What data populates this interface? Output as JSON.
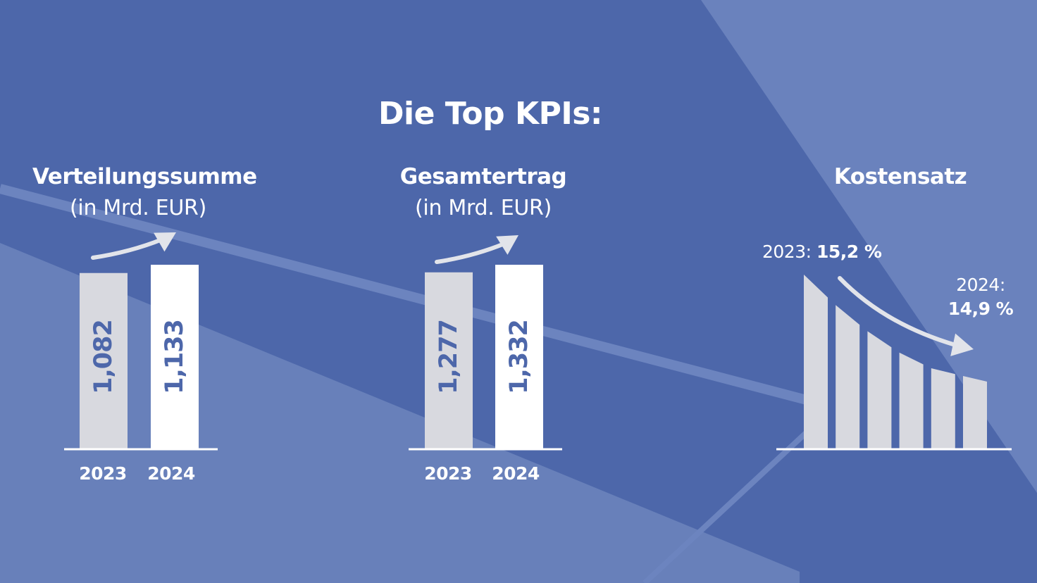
{
  "title": "Die Top KPIs:",
  "colors": {
    "background": "#4d67aa",
    "background_light": "#6880ba",
    "bar_2023": "#d8d9df",
    "bar_2024": "#ffffff",
    "accent_text": "#4d67aa",
    "arrow": "#e2e4ea"
  },
  "chart_data": [
    {
      "type": "bar",
      "title": "Verteilungssumme",
      "subtitle": "(in Mrd. EUR)",
      "categories": [
        "2023",
        "2024"
      ],
      "values": [
        1.082,
        1.133
      ],
      "value_labels": [
        "1,082",
        "1,133"
      ],
      "ylim": [
        0,
        1.133
      ],
      "trend_arrow": "up",
      "grid": false,
      "legend": "none"
    },
    {
      "type": "bar",
      "title": "Gesamtertrag",
      "subtitle": "(in Mrd. EUR)",
      "categories": [
        "2023",
        "2024"
      ],
      "values": [
        1.277,
        1.332
      ],
      "value_labels": [
        "1,277",
        "1,332"
      ],
      "ylim": [
        0,
        1.332
      ],
      "trend_arrow": "up",
      "grid": false,
      "legend": "none"
    },
    {
      "type": "bar",
      "title": "Kostensatz",
      "start": {
        "year_label": "2023:",
        "value_label": "15,2 %",
        "value": 15.2
      },
      "end": {
        "year_label": "2024:",
        "value_label": "14,9 %",
        "value": 14.9
      },
      "bar_count": 6,
      "trend_arrow": "down",
      "grid": false,
      "legend": "none"
    }
  ]
}
